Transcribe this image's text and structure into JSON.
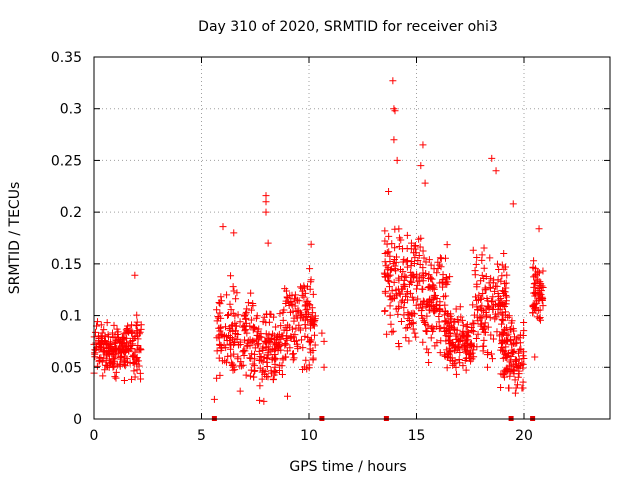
{
  "chart_data": {
    "type": "scatter",
    "title": "Day 310 of 2020, SRMTID for receiver ohi3",
    "xlabel": "GPS time / hours",
    "ylabel": "SRMTID / TECUs",
    "xlim": [
      0,
      24
    ],
    "ylim": [
      0,
      0.35
    ],
    "xticks": [
      0,
      5,
      10,
      15,
      20
    ],
    "xtick_labels": [
      "0",
      "5",
      "10",
      "15",
      "20"
    ],
    "yticks": [
      0,
      0.05,
      0.1,
      0.15,
      0.2,
      0.25,
      0.3,
      0.35
    ],
    "ytick_labels": [
      "0",
      "0.05",
      "0.1",
      "0.15",
      "0.2",
      "0.25",
      "0.3",
      "0.35"
    ],
    "grid": true,
    "marker": "+",
    "colors": {
      "points": "#ff0000",
      "grid": "#a0a0a0",
      "axis": "#000000",
      "gap_markers": "#e00000"
    },
    "gap_markers_x": [
      5.6,
      10.6,
      13.6,
      19.4,
      20.4
    ],
    "highlights": [
      {
        "x": 13.9,
        "y": 0.327
      },
      {
        "x": 13.95,
        "y": 0.3
      },
      {
        "x": 14.0,
        "y": 0.298
      },
      {
        "x": 13.95,
        "y": 0.27
      },
      {
        "x": 15.3,
        "y": 0.265
      },
      {
        "x": 14.1,
        "y": 0.25
      },
      {
        "x": 18.5,
        "y": 0.252
      },
      {
        "x": 15.2,
        "y": 0.245
      },
      {
        "x": 18.7,
        "y": 0.24
      },
      {
        "x": 15.4,
        "y": 0.228
      },
      {
        "x": 13.7,
        "y": 0.22
      },
      {
        "x": 8.0,
        "y": 0.216
      },
      {
        "x": 8.0,
        "y": 0.21
      },
      {
        "x": 19.5,
        "y": 0.208
      },
      {
        "x": 8.0,
        "y": 0.2
      },
      {
        "x": 6.0,
        "y": 0.186
      },
      {
        "x": 20.7,
        "y": 0.184
      },
      {
        "x": 8.1,
        "y": 0.17
      },
      {
        "x": 10.1,
        "y": 0.169
      },
      {
        "x": 6.5,
        "y": 0.18
      },
      {
        "x": 1.9,
        "y": 0.139
      },
      {
        "x": 5.6,
        "y": 0.019
      },
      {
        "x": 7.7,
        "y": 0.018
      },
      {
        "x": 7.9,
        "y": 0.017
      },
      {
        "x": 9.0,
        "y": 0.022
      },
      {
        "x": 19.6,
        "y": 0.025
      },
      {
        "x": 6.8,
        "y": 0.027
      },
      {
        "x": 19.3,
        "y": 0.03
      },
      {
        "x": 20.5,
        "y": 0.06
      },
      {
        "x": 10.6,
        "y": 0.083
      },
      {
        "x": 10.7,
        "y": 0.075
      },
      {
        "x": 10.7,
        "y": 0.05
      }
    ],
    "clusters": [
      {
        "x_from": 0.0,
        "x_to": 2.2,
        "y_min": 0.035,
        "y_max": 0.12,
        "center": 0.068,
        "count": 230
      },
      {
        "x_from": 5.7,
        "x_to": 7.4,
        "y_min": 0.03,
        "y_max": 0.17,
        "center": 0.082,
        "count": 140
      },
      {
        "x_from": 7.4,
        "x_to": 8.8,
        "y_min": 0.02,
        "y_max": 0.14,
        "center": 0.068,
        "count": 130
      },
      {
        "x_from": 8.8,
        "x_to": 10.3,
        "y_min": 0.03,
        "y_max": 0.165,
        "center": 0.095,
        "count": 140
      },
      {
        "x_from": 13.5,
        "x_to": 15.2,
        "y_min": 0.05,
        "y_max": 0.22,
        "center": 0.13,
        "count": 160
      },
      {
        "x_from": 15.2,
        "x_to": 16.6,
        "y_min": 0.05,
        "y_max": 0.215,
        "center": 0.115,
        "count": 130
      },
      {
        "x_from": 16.3,
        "x_to": 17.6,
        "y_min": 0.03,
        "y_max": 0.12,
        "center": 0.075,
        "count": 130
      },
      {
        "x_from": 17.6,
        "x_to": 19.2,
        "y_min": 0.04,
        "y_max": 0.21,
        "center": 0.11,
        "count": 150
      },
      {
        "x_from": 18.9,
        "x_to": 20.0,
        "y_min": 0.03,
        "y_max": 0.16,
        "center": 0.065,
        "count": 110
      },
      {
        "x_from": 20.4,
        "x_to": 20.9,
        "y_min": 0.05,
        "y_max": 0.17,
        "center": 0.12,
        "count": 60
      }
    ]
  }
}
